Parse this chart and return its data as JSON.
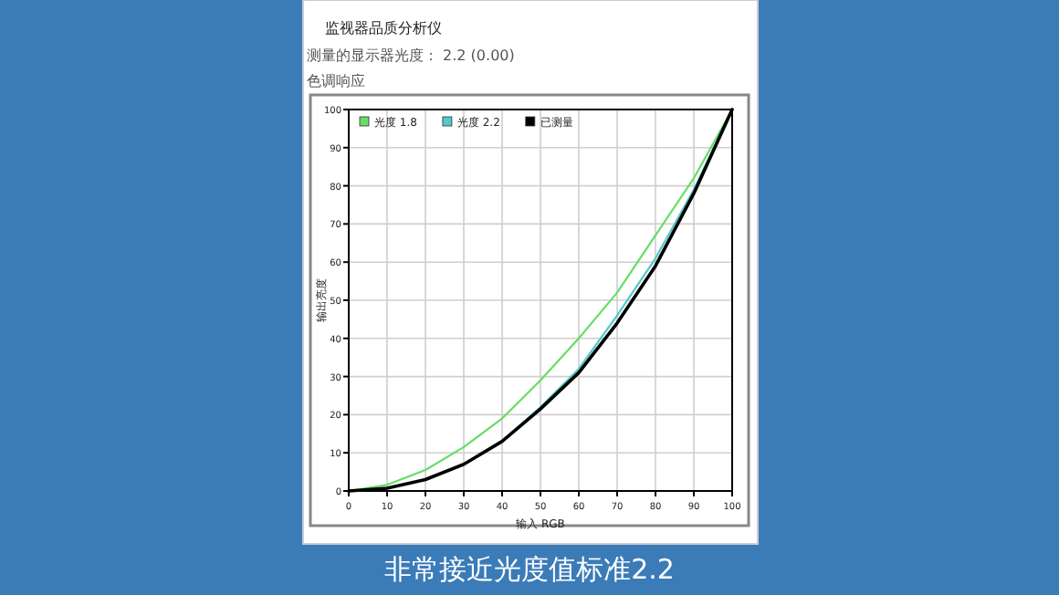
{
  "chart_data": {
    "type": "line",
    "title": "监视器品质分析仪",
    "subtitle": "测量的显示器光度： 2.2 (0.00)",
    "xlabel": "输入 RGB",
    "ylabel": "输出亮度",
    "annotations": [
      "色调响应",
      "非常接近光度值标准2.2"
    ],
    "x": [
      0,
      10,
      20,
      30,
      40,
      50,
      60,
      70,
      80,
      90,
      100
    ],
    "series": [
      {
        "name": "光度 1.8",
        "color": "#66dd66",
        "values": [
          0,
          1.6,
          5.5,
          11.5,
          19,
          29,
          40,
          52,
          67,
          82,
          100
        ]
      },
      {
        "name": "光度 2.2",
        "color": "#55c8c8",
        "values": [
          null,
          null,
          null,
          7,
          13,
          22,
          32,
          46,
          61,
          79,
          100
        ]
      },
      {
        "name": "已测量",
        "color": "#000000",
        "values": [
          0,
          0.7,
          3,
          7,
          13,
          21.5,
          31,
          44,
          59,
          78,
          100
        ]
      }
    ],
    "xlim": [
      0,
      100
    ],
    "ylim": [
      0,
      100
    ],
    "xticks": [
      0,
      10,
      20,
      30,
      40,
      50,
      60,
      70,
      80,
      90,
      100
    ],
    "yticks": [
      0,
      10,
      20,
      30,
      40,
      50,
      60,
      70,
      80,
      90,
      100
    ],
    "grid": true,
    "legend": "top left",
    "marker": "none",
    "line_style": "solid"
  }
}
